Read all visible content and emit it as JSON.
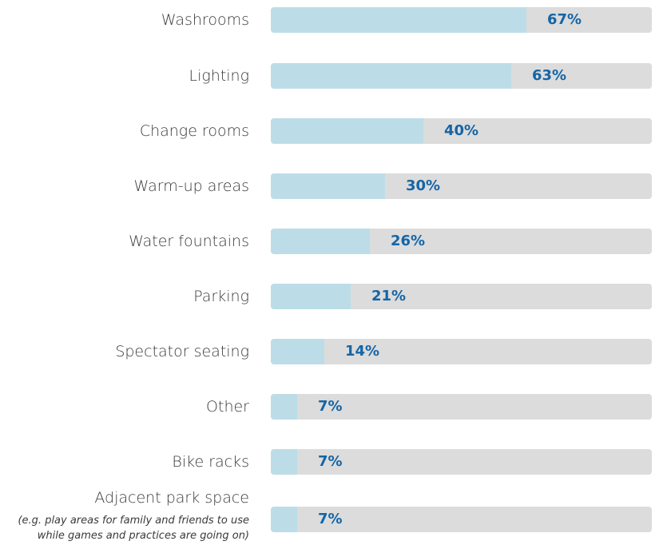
{
  "chart_data": {
    "type": "bar",
    "orientation": "horizontal",
    "categories": [
      "Washrooms",
      "Lighting",
      "Change rooms",
      "Warm-up areas",
      "Water fountains",
      "Parking",
      "Spectator seating",
      "Other",
      "Bike racks",
      "Adjacent park space"
    ],
    "category_notes": [
      "",
      "",
      "",
      "",
      "",
      "",
      "",
      "",
      "",
      "(e.g. play areas for family and friends to use while games and practices are going on)"
    ],
    "values": [
      67,
      63,
      40,
      30,
      26,
      21,
      14,
      7,
      7,
      7
    ],
    "value_labels": [
      "67%",
      "63%",
      "40%",
      "30%",
      "26%",
      "21%",
      "14%",
      "7%",
      "7%",
      "7%"
    ],
    "xlim": [
      0,
      100
    ],
    "colors": {
      "fill": "#bcdde7",
      "track": "#dcdcdc",
      "value_text": "#1565a6",
      "label_text": "#3a3a3a"
    }
  }
}
